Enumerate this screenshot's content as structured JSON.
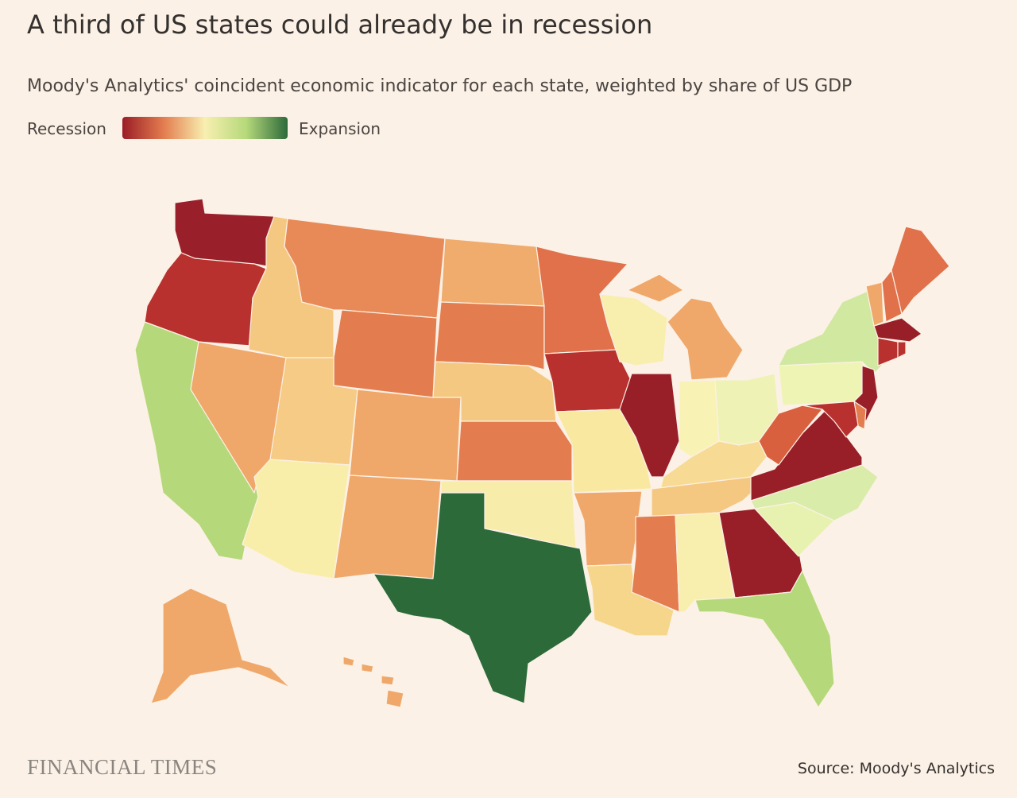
{
  "header": {
    "title": "A third of US states could already be in recession",
    "subtitle": "Moody's Analytics' coincident economic indicator for each state, weighted by share of US GDP"
  },
  "legend": {
    "low_label": "Recession",
    "high_label": "Expansion",
    "colors": [
      "#9b1d27",
      "#e37d4f",
      "#f8efb0",
      "#b5d97a",
      "#2c6a3a"
    ]
  },
  "map": {
    "regions": [
      {
        "color": "#99202a"
      },
      {
        "color": "#b8312f"
      },
      {
        "color": "#b5d97a"
      },
      {
        "color": "#efa86a"
      },
      {
        "color": "#f5c882"
      },
      {
        "color": "#e88a57"
      },
      {
        "color": "#e37d4f"
      },
      {
        "color": "#f5cb85"
      },
      {
        "color": "#f8eeaa"
      },
      {
        "color": "#efa86a"
      },
      {
        "color": "#efa86a"
      },
      {
        "color": "#efac6c"
      },
      {
        "color": "#e37d4f"
      },
      {
        "color": "#f5c882"
      },
      {
        "color": "#e37d4f"
      },
      {
        "color": "#f8ecaa"
      },
      {
        "color": "#2c6a3a"
      },
      {
        "color": "#e0714a"
      },
      {
        "color": "#b8312f"
      },
      {
        "color": "#f9e9a0"
      },
      {
        "color": "#efa86a"
      },
      {
        "color": "#f5d68a"
      },
      {
        "color": "#f8eeae"
      },
      {
        "color": "#981f28"
      },
      {
        "color": "#efa86a"
      },
      {
        "color": "#f8f2b5"
      },
      {
        "color": "#eef2b4"
      },
      {
        "color": "#f7db94"
      },
      {
        "color": "#f5c882"
      },
      {
        "color": "#e37d4f"
      },
      {
        "color": "#f8eeae"
      },
      {
        "color": "#981f28"
      },
      {
        "color": "#b5d97a"
      },
      {
        "color": "#e8f2b0"
      },
      {
        "color": "#d9ecaa"
      },
      {
        "color": "#981f28"
      },
      {
        "color": "#d9603f"
      },
      {
        "color": "#eef4b4"
      },
      {
        "color": "#d0e8a0"
      },
      {
        "color": "#efa86a"
      },
      {
        "color": "#e0714a"
      },
      {
        "color": "#e0714a"
      },
      {
        "color": "#981f28"
      },
      {
        "color": "#b8312f"
      },
      {
        "color": "#b8312f"
      },
      {
        "color": "#981f28"
      },
      {
        "color": "#e37d4f"
      },
      {
        "color": "#b8312f"
      },
      {
        "color": "#efa86a"
      },
      {
        "color": "#efa86a"
      }
    ]
  },
  "footer": {
    "logo": "FINANCIAL TIMES",
    "source": "Source: Moody's Analytics"
  }
}
